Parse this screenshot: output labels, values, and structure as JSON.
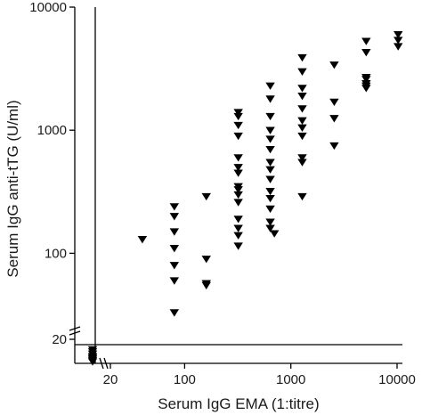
{
  "chart_data": {
    "type": "scatter",
    "title": "",
    "xlabel": "Serum IgG EMA (1:titre)",
    "ylabel": "Serum IgG anti-tTG (U/ml)",
    "x_scale": "log",
    "y_scale": "log",
    "xlim": [
      10,
      10000
    ],
    "ylim": [
      16,
      10000
    ],
    "x_ticks": [
      {
        "value": 20,
        "label": "20"
      },
      {
        "value": 100,
        "label": "100"
      },
      {
        "value": 1000,
        "label": "1000"
      },
      {
        "value": 10000,
        "label": "10000"
      }
    ],
    "y_ticks": [
      {
        "value": 20,
        "label": "20"
      },
      {
        "value": 100,
        "label": "100"
      },
      {
        "value": 1000,
        "label": "1000"
      },
      {
        "value": 10000,
        "label": "10000"
      }
    ],
    "axis_breaks": [
      "x",
      "y"
    ],
    "reference_lines": {
      "x_cutoff": 16,
      "y_cutoff": 18
    },
    "grid": false,
    "legend": "none",
    "marker": "filled-down-triangle",
    "marker_color": "#000000",
    "series": [
      {
        "points": [
          {
            "x": 15,
            "y": 17
          },
          {
            "x": 15,
            "y": 16
          },
          {
            "x": 15,
            "y": 15
          },
          {
            "x": 15,
            "y": 14
          },
          {
            "x": 15,
            "y": 13.5
          },
          {
            "x": 15,
            "y": 13
          },
          {
            "x": 15,
            "y": 12.5
          },
          {
            "x": 15,
            "y": 12
          },
          {
            "x": 40,
            "y": 130
          },
          {
            "x": 80,
            "y": 240
          },
          {
            "x": 80,
            "y": 200
          },
          {
            "x": 80,
            "y": 150
          },
          {
            "x": 80,
            "y": 110
          },
          {
            "x": 80,
            "y": 80
          },
          {
            "x": 80,
            "y": 60
          },
          {
            "x": 80,
            "y": 33
          },
          {
            "x": 160,
            "y": 290
          },
          {
            "x": 160,
            "y": 90
          },
          {
            "x": 160,
            "y": 57
          },
          {
            "x": 160,
            "y": 55
          },
          {
            "x": 320,
            "y": 1400
          },
          {
            "x": 320,
            "y": 1300
          },
          {
            "x": 320,
            "y": 1100
          },
          {
            "x": 320,
            "y": 900
          },
          {
            "x": 320,
            "y": 600
          },
          {
            "x": 320,
            "y": 500
          },
          {
            "x": 320,
            "y": 450
          },
          {
            "x": 320,
            "y": 350
          },
          {
            "x": 320,
            "y": 330
          },
          {
            "x": 320,
            "y": 300
          },
          {
            "x": 320,
            "y": 260
          },
          {
            "x": 320,
            "y": 190
          },
          {
            "x": 320,
            "y": 160
          },
          {
            "x": 320,
            "y": 140
          },
          {
            "x": 320,
            "y": 115
          },
          {
            "x": 640,
            "y": 2300
          },
          {
            "x": 640,
            "y": 1800
          },
          {
            "x": 640,
            "y": 1300
          },
          {
            "x": 640,
            "y": 1000
          },
          {
            "x": 640,
            "y": 850
          },
          {
            "x": 640,
            "y": 700
          },
          {
            "x": 640,
            "y": 550
          },
          {
            "x": 640,
            "y": 480
          },
          {
            "x": 640,
            "y": 400
          },
          {
            "x": 640,
            "y": 320
          },
          {
            "x": 640,
            "y": 280
          },
          {
            "x": 640,
            "y": 230
          },
          {
            "x": 640,
            "y": 180
          },
          {
            "x": 640,
            "y": 160
          },
          {
            "x": 700,
            "y": 145
          },
          {
            "x": 1280,
            "y": 3900
          },
          {
            "x": 1280,
            "y": 3000
          },
          {
            "x": 1280,
            "y": 2200
          },
          {
            "x": 1280,
            "y": 1900
          },
          {
            "x": 1280,
            "y": 1500
          },
          {
            "x": 1280,
            "y": 1200
          },
          {
            "x": 1280,
            "y": 1050
          },
          {
            "x": 1280,
            "y": 900
          },
          {
            "x": 1280,
            "y": 600
          },
          {
            "x": 1280,
            "y": 550
          },
          {
            "x": 1280,
            "y": 290
          },
          {
            "x": 2560,
            "y": 3400
          },
          {
            "x": 2560,
            "y": 1700
          },
          {
            "x": 2560,
            "y": 1250
          },
          {
            "x": 2560,
            "y": 750
          },
          {
            "x": 5120,
            "y": 5300
          },
          {
            "x": 5120,
            "y": 4300
          },
          {
            "x": 5120,
            "y": 2700
          },
          {
            "x": 5120,
            "y": 2600
          },
          {
            "x": 5120,
            "y": 2400
          },
          {
            "x": 5120,
            "y": 2300
          },
          {
            "x": 5120,
            "y": 2200
          },
          {
            "x": 10240,
            "y": 6000
          },
          {
            "x": 10240,
            "y": 5400
          },
          {
            "x": 10240,
            "y": 4800
          }
        ]
      }
    ]
  }
}
